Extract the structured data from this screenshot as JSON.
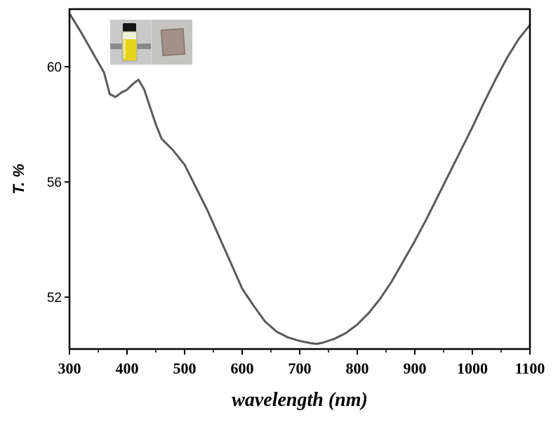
{
  "chart_data": {
    "type": "line",
    "title": "",
    "xlabel": "wavelength (nm)",
    "ylabel": "T. %",
    "xlim": [
      300,
      1100
    ],
    "ylim": [
      50.2,
      62.0
    ],
    "xticks": [
      300,
      400,
      500,
      600,
      700,
      800,
      900,
      1000,
      1100
    ],
    "yticks": [
      52,
      56,
      60
    ],
    "grid": false,
    "legend": "none",
    "line_color": "#5a5a5a",
    "series": [
      {
        "x": [
          300,
          320,
          340,
          360,
          370,
          380,
          390,
          400,
          410,
          420,
          430,
          440,
          450,
          460,
          470,
          480,
          500,
          520,
          540,
          560,
          580,
          600,
          620,
          640,
          660,
          680,
          700,
          720,
          730,
          740,
          760,
          780,
          800,
          820,
          840,
          860,
          880,
          900,
          920,
          940,
          960,
          980,
          1000,
          1020,
          1040,
          1060,
          1080,
          1100
        ],
        "y": [
          61.85,
          61.2,
          60.5,
          59.8,
          59.05,
          58.95,
          59.1,
          59.2,
          59.4,
          59.55,
          59.2,
          58.6,
          58.0,
          57.5,
          57.3,
          57.1,
          56.6,
          55.8,
          55.0,
          54.1,
          53.2,
          52.3,
          51.7,
          51.15,
          50.8,
          50.6,
          50.48,
          50.4,
          50.38,
          50.42,
          50.55,
          50.75,
          51.05,
          51.45,
          51.95,
          52.55,
          53.25,
          53.95,
          54.7,
          55.5,
          56.3,
          57.1,
          57.9,
          58.75,
          59.55,
          60.3,
          60.95,
          61.45
        ]
      }
    ],
    "inset": {
      "content": "photo of a yellow solution in a glass vial and a square film sample"
    }
  }
}
